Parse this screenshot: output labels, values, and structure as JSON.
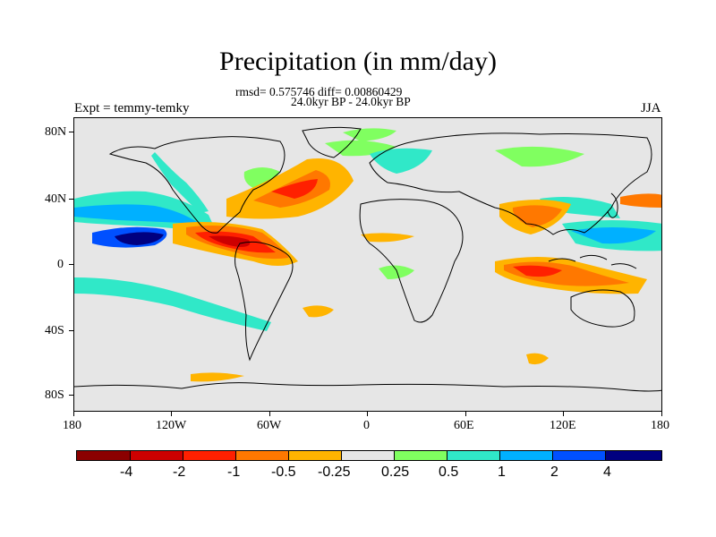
{
  "header": {
    "title": "Precipitation (in mm/day)",
    "stats": "rmsd= 0.575746 diff= 0.00860429",
    "period": "24.0kyr BP - 24.0kyr BP",
    "experiment": "Expt = temmy-temky",
    "season": "JJA"
  },
  "map": {
    "land_color": "#e6e6e6",
    "y_axis": {
      "labels": [
        "80N",
        "40N",
        "0",
        "40S",
        "80S"
      ]
    },
    "x_axis": {
      "labels": [
        "180",
        "120W",
        "60W",
        "0",
        "60E",
        "120E",
        "180"
      ]
    }
  },
  "colorbar": {
    "labels": [
      "-4",
      "-2",
      "-1",
      "-0.5",
      "-0.25",
      "0.25",
      "0.5",
      "1",
      "2",
      "4"
    ],
    "colors": [
      "#8b0000",
      "#cd0000",
      "#ff2000",
      "#ff7800",
      "#ffb400",
      "#e6e6e6",
      "#80ff60",
      "#30e8c8",
      "#00b0ff",
      "#0050ff",
      "#000080"
    ]
  }
}
